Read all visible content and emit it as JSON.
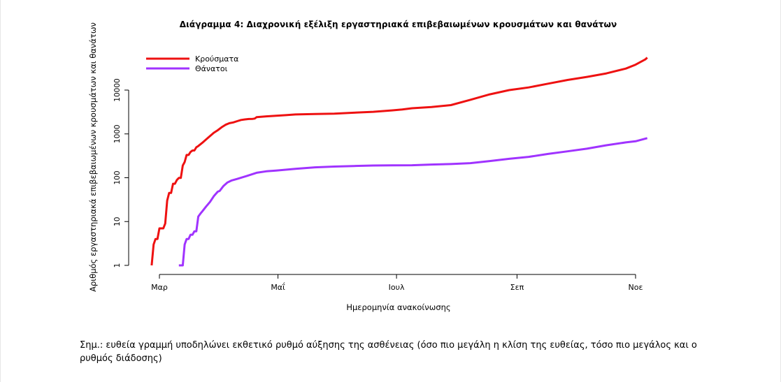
{
  "chart_data": {
    "type": "line",
    "title": "Διάγραμμα 4: Διαχρονική εξέλιξη εργαστηριακά επιβεβαιωμένων κρουσμάτων και θανάτων",
    "xlabel": "Ημερομηνία ανακοίνωσης",
    "ylabel": "Αριθμός εργαστηριακά επιβεβαιωμένων κρουσμάτων και θανάτων",
    "y_scale": "log",
    "ylim": [
      1,
      60000
    ],
    "yticks": [
      1,
      10,
      100,
      1000,
      10000
    ],
    "ytick_labels": [
      "1",
      "10",
      "100",
      "1000",
      "10000"
    ],
    "x_unit": "days since 1 Mar 2020",
    "xlim": [
      -6,
      250
    ],
    "xticks": [
      0,
      61,
      122,
      184,
      245
    ],
    "xtick_labels": [
      "Μαρ",
      "Μαΐ",
      "Ιουλ",
      "Σεπ",
      "Νοε"
    ],
    "legend_position": "top-left",
    "grid": false,
    "series": [
      {
        "name": "Κρούσματα",
        "color": "#ee1111",
        "points": [
          [
            -4,
            1
          ],
          [
            -3,
            3
          ],
          [
            -2,
            4
          ],
          [
            -1,
            4
          ],
          [
            0,
            7
          ],
          [
            1,
            7
          ],
          [
            2,
            7
          ],
          [
            3,
            9
          ],
          [
            4,
            30
          ],
          [
            5,
            45
          ],
          [
            6,
            45
          ],
          [
            7,
            73
          ],
          [
            8,
            73
          ],
          [
            9,
            89
          ],
          [
            10,
            99
          ],
          [
            11,
            99
          ],
          [
            12,
            190
          ],
          [
            13,
            228
          ],
          [
            14,
            331
          ],
          [
            15,
            331
          ],
          [
            16,
            387
          ],
          [
            17,
            418
          ],
          [
            18,
            418
          ],
          [
            19,
            495
          ],
          [
            20,
            530
          ],
          [
            22,
            624
          ],
          [
            24,
            743
          ],
          [
            26,
            892
          ],
          [
            28,
            1061
          ],
          [
            30,
            1212
          ],
          [
            32,
            1415
          ],
          [
            34,
            1613
          ],
          [
            36,
            1755
          ],
          [
            38,
            1832
          ],
          [
            40,
            1955
          ],
          [
            42,
            2081
          ],
          [
            44,
            2145
          ],
          [
            46,
            2192
          ],
          [
            48,
            2207
          ],
          [
            49,
            2235
          ],
          [
            50,
            2408
          ],
          [
            55,
            2520
          ],
          [
            60,
            2600
          ],
          [
            65,
            2680
          ],
          [
            70,
            2780
          ],
          [
            80,
            2850
          ],
          [
            90,
            2900
          ],
          [
            100,
            3050
          ],
          [
            110,
            3200
          ],
          [
            120,
            3450
          ],
          [
            125,
            3600
          ],
          [
            130,
            3850
          ],
          [
            140,
            4100
          ],
          [
            150,
            4550
          ],
          [
            160,
            6000
          ],
          [
            170,
            8000
          ],
          [
            180,
            10000
          ],
          [
            190,
            11500
          ],
          [
            200,
            14000
          ],
          [
            210,
            17000
          ],
          [
            220,
            20000
          ],
          [
            230,
            24000
          ],
          [
            240,
            31000
          ],
          [
            245,
            38000
          ],
          [
            250,
            50000
          ],
          [
            251,
            55000
          ]
        ]
      },
      {
        "name": "Θάνατοι",
        "color": "#a033ff",
        "points": [
          [
            10,
            1
          ],
          [
            11,
            1
          ],
          [
            12,
            1
          ],
          [
            13,
            3
          ],
          [
            14,
            4
          ],
          [
            15,
            4
          ],
          [
            16,
            5
          ],
          [
            17,
            5
          ],
          [
            18,
            6
          ],
          [
            19,
            6
          ],
          [
            20,
            13
          ],
          [
            21,
            15
          ],
          [
            22,
            17
          ],
          [
            24,
            22
          ],
          [
            26,
            28
          ],
          [
            28,
            38
          ],
          [
            30,
            48
          ],
          [
            31,
            50
          ],
          [
            33,
            65
          ],
          [
            35,
            78
          ],
          [
            37,
            86
          ],
          [
            40,
            94
          ],
          [
            45,
            110
          ],
          [
            50,
            130
          ],
          [
            55,
            140
          ],
          [
            60,
            146
          ],
          [
            70,
            160
          ],
          [
            80,
            173
          ],
          [
            90,
            180
          ],
          [
            100,
            185
          ],
          [
            110,
            190
          ],
          [
            120,
            192
          ],
          [
            130,
            193
          ],
          [
            140,
            200
          ],
          [
            150,
            205
          ],
          [
            160,
            215
          ],
          [
            170,
            240
          ],
          [
            180,
            270
          ],
          [
            190,
            300
          ],
          [
            200,
            350
          ],
          [
            210,
            400
          ],
          [
            220,
            460
          ],
          [
            230,
            550
          ],
          [
            240,
            640
          ],
          [
            245,
            680
          ],
          [
            251,
            800
          ]
        ]
      }
    ]
  },
  "note": "Σημ.: ευθεία γραμμή υποδηλώνει εκθετικό ρυθμό αύξησης της ασθένειας (όσο πιο μεγάλη η κλίση της ευθείας, τόσο πιο μεγάλος και ο ρυθμός διάδοσης)"
}
